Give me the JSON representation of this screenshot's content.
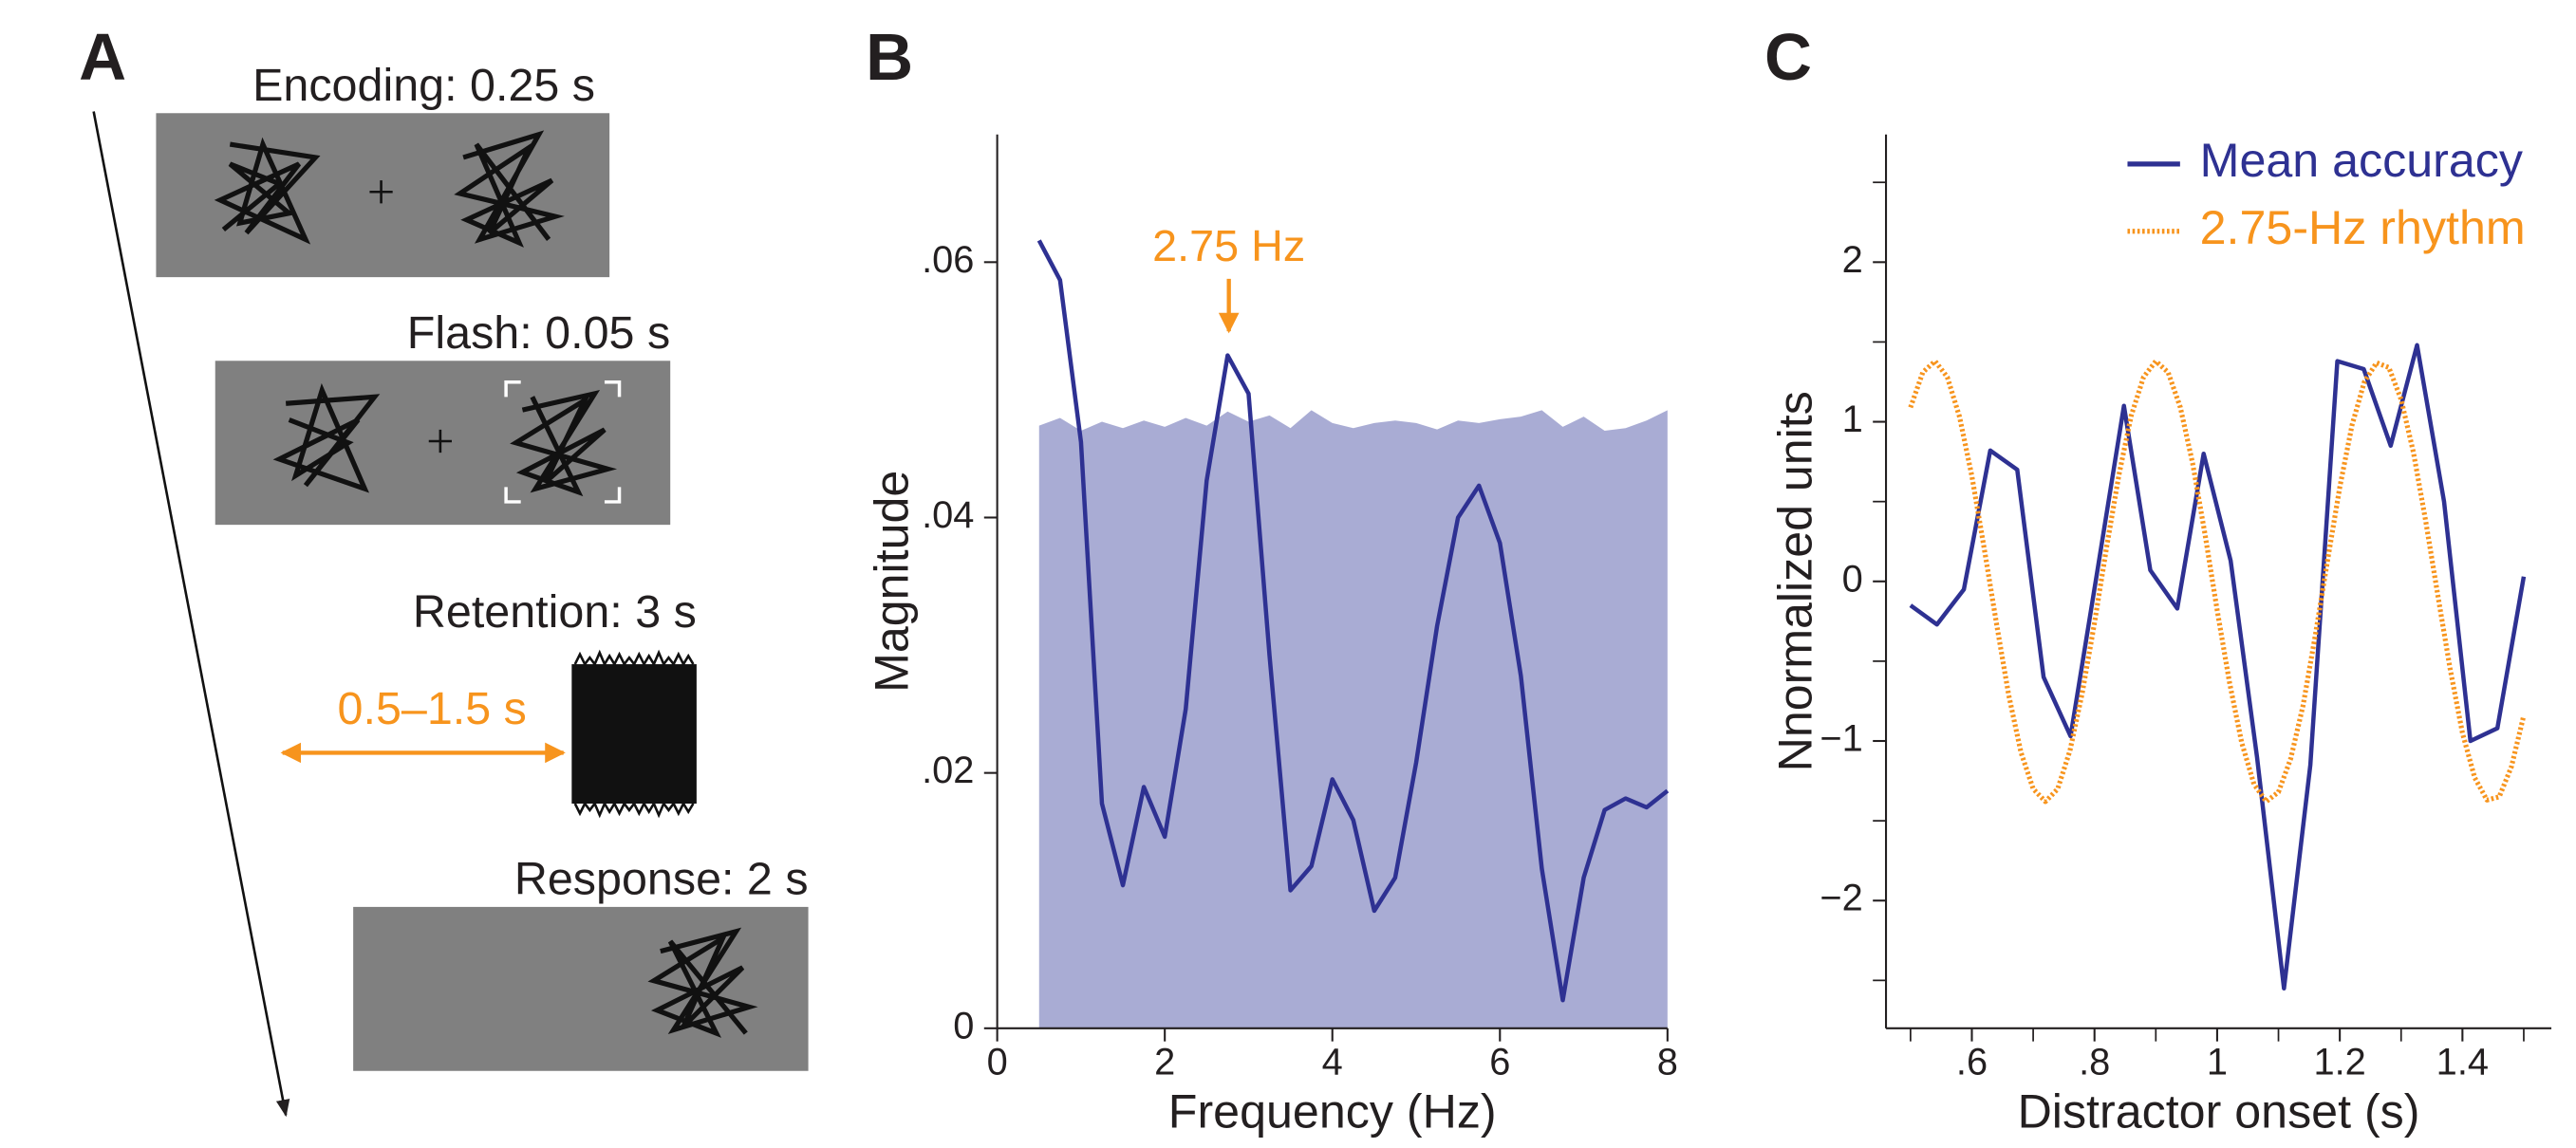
{
  "panel_labels": [
    "A",
    "B",
    "C"
  ],
  "diagram": {
    "encoding": "Encoding: 0.25 s",
    "flash": "Flash: 0.05 s",
    "retention": "Retention: 3 s",
    "jitter": "0.5–1.5 s",
    "response": "Response: 2 s"
  },
  "chart_data": [
    {
      "type": "line",
      "xlabel": "Frequency (Hz)",
      "ylabel": "Magnitude",
      "annotation": "2.75 Hz",
      "xlim": [
        0,
        8
      ],
      "ylim": [
        0,
        0.07
      ],
      "xticks": [
        0,
        2,
        4,
        6,
        8
      ],
      "yticks": [
        0,
        {
          "value": 0.02,
          "label": ".02"
        },
        {
          "value": 0.04,
          "label": ".04"
        },
        {
          "value": 0.06,
          "label": ".06"
        }
      ],
      "series": [
        {
          "color": "#a9acd4",
          "fill": true,
          "x": [
            0.5,
            0.75,
            1,
            1.25,
            1.5,
            1.75,
            2,
            2.25,
            2.5,
            2.75,
            3,
            3.25,
            3.5,
            3.75,
            4,
            4.25,
            4.5,
            4.75,
            5,
            5.25,
            5.5,
            5.75,
            6,
            6.25,
            6.5,
            6.75,
            7,
            7.25,
            7.5,
            7.75,
            8
          ],
          "values": [
            0.0472,
            0.0478,
            0.0468,
            0.0475,
            0.047,
            0.0476,
            0.0471,
            0.0478,
            0.0472,
            0.0483,
            0.0475,
            0.048,
            0.047,
            0.0484,
            0.0474,
            0.047,
            0.0474,
            0.0476,
            0.0474,
            0.0469,
            0.0476,
            0.0474,
            0.0477,
            0.0479,
            0.0484,
            0.0471,
            0.0479,
            0.0468,
            0.047,
            0.0476,
            0.0484
          ]
        },
        {
          "color": "#2e3192",
          "x": [
            0.5,
            0.75,
            1,
            1.25,
            1.5,
            1.75,
            2,
            2.25,
            2.5,
            2.75,
            3,
            3.25,
            3.5,
            3.75,
            4,
            4.25,
            4.5,
            4.75,
            5,
            5.25,
            5.5,
            5.75,
            6,
            6.25,
            6.5,
            6.75,
            7,
            7.25,
            7.5,
            7.75,
            8
          ],
          "values": [
            0.0617,
            0.0586,
            0.0459,
            0.0176,
            0.0112,
            0.0189,
            0.015,
            0.025,
            0.0429,
            0.0527,
            0.0497,
            0.0292,
            0.0108,
            0.0127,
            0.0195,
            0.0163,
            0.0092,
            0.0118,
            0.0208,
            0.0315,
            0.04,
            0.0425,
            0.038,
            0.0276,
            0.0125,
            0.0022,
            0.0118,
            0.0171,
            0.018,
            0.0173,
            0.0186
          ]
        }
      ]
    },
    {
      "type": "line",
      "xlabel": "Distractor onset (s)",
      "ylabel": "Nnormalized units",
      "legend": "upper right",
      "xlim": [
        0.46,
        1.545
      ],
      "ylim": [
        -2.8,
        2.8
      ],
      "xticks": [
        {
          "value": 0.6,
          "label": ".6"
        },
        {
          "value": 0.8,
          "label": ".8"
        },
        1,
        {
          "value": 1.2,
          "label": "1.2"
        },
        {
          "value": 1.4,
          "label": "1.4"
        }
      ],
      "xminorticks": [
        0.5,
        0.7,
        0.9,
        1.1,
        1.3,
        1.5
      ],
      "yticks": [
        {
          "value": -2,
          "label": "−2"
        },
        {
          "value": -1,
          "label": "−1"
        },
        0,
        1,
        2
      ],
      "yminorticks": [
        -2.5,
        -1.5,
        -0.5,
        0.5,
        1.5,
        2.5
      ],
      "series": [
        {
          "name": "Mean accuracy",
          "color": "#2e3192",
          "x": [
            0.5,
            0.543,
            0.587,
            0.63,
            0.674,
            0.717,
            0.761,
            0.804,
            0.848,
            0.891,
            0.935,
            0.978,
            1.022,
            1.065,
            1.109,
            1.152,
            1.196,
            1.239,
            1.283,
            1.326,
            1.37,
            1.413,
            1.457,
            1.5
          ],
          "values": [
            -0.15,
            -0.27,
            -0.05,
            0.82,
            0.7,
            -0.6,
            -0.97,
            0.05,
            1.1,
            0.07,
            -0.17,
            0.8,
            0.13,
            -1.1,
            -2.55,
            -1.15,
            1.38,
            1.33,
            0.85,
            1.48,
            0.5,
            -1,
            -0.92,
            0.03
          ]
        },
        {
          "name": "2.75-Hz rhythm",
          "color": "#f7941d",
          "dash": "dotted",
          "x": [
            0.5,
            0.52,
            0.54,
            0.56,
            0.58,
            0.6,
            0.62,
            0.64,
            0.66,
            0.68,
            0.7,
            0.72,
            0.74,
            0.76,
            0.78,
            0.8,
            0.82,
            0.84,
            0.86,
            0.88,
            0.9,
            0.92,
            0.94,
            0.96,
            0.98,
            1,
            1.02,
            1.04,
            1.06,
            1.08,
            1.1,
            1.12,
            1.14,
            1.16,
            1.18,
            1.2,
            1.22,
            1.24,
            1.26,
            1.28,
            1.3,
            1.32,
            1.34,
            1.36,
            1.38,
            1.4,
            1.42,
            1.44,
            1.46,
            1.48,
            1.5
          ],
          "values": [
            1.09,
            1.31,
            1.38,
            1.28,
            1.03,
            0.66,
            0.21,
            -0.26,
            -0.71,
            -1.07,
            -1.3,
            -1.38,
            -1.3,
            -1.06,
            -0.7,
            -0.26,
            0.22,
            0.67,
            1.04,
            1.28,
            1.38,
            1.31,
            1.09,
            0.74,
            0.3,
            -0.18,
            -0.63,
            -1.01,
            -1.27,
            -1.38,
            -1.32,
            -1.11,
            -0.78,
            -0.34,
            0.13,
            0.59,
            0.98,
            1.25,
            1.37,
            1.34,
            1.14,
            0.81,
            0.38,
            -0.09,
            -0.55,
            -0.95,
            -1.23,
            -1.37,
            -1.35,
            -1.16,
            -0.84
          ]
        }
      ]
    }
  ]
}
